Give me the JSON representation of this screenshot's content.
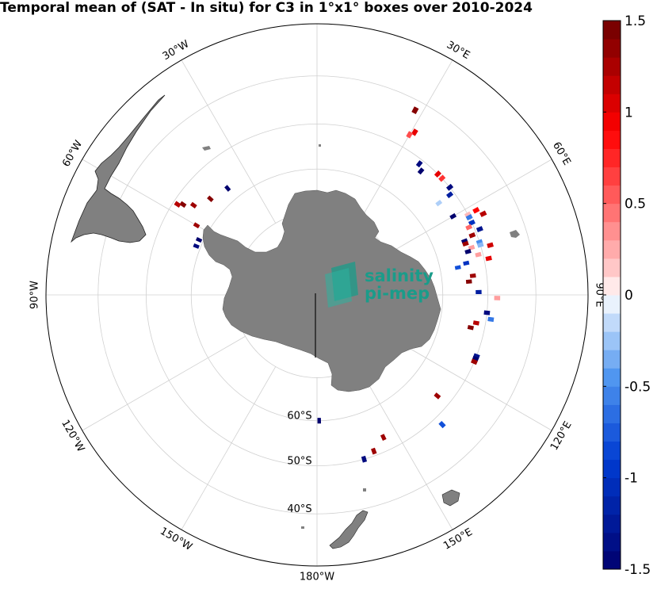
{
  "title": "Temporal mean of (SAT - In situ) for C3 in 1°x1° boxes over 2010-2024",
  "watermark": {
    "line1": "salinity",
    "line2": "pi-mep"
  },
  "longitude_labels": [
    {
      "text": "30°E",
      "lon": 30
    },
    {
      "text": "60°E",
      "lon": 60
    },
    {
      "text": "90°E",
      "lon": 90
    },
    {
      "text": "120°E",
      "lon": 120
    },
    {
      "text": "150°E",
      "lon": 150
    },
    {
      "text": "180°W",
      "lon": 180
    },
    {
      "text": "150°W",
      "lon": -150
    },
    {
      "text": "120°W",
      "lon": -120
    },
    {
      "text": "90°W",
      "lon": -90
    },
    {
      "text": "60°W",
      "lon": -60
    },
    {
      "text": "30°W",
      "lon": -30
    }
  ],
  "latitude_labels": [
    {
      "text": "60°S",
      "lat": -60
    },
    {
      "text": "50°S",
      "lat": -50
    },
    {
      "text": "40°S",
      "lat": -40
    }
  ],
  "map": {
    "projection": "south-polar-stereographic",
    "lat_circles": [
      -70,
      -60,
      -50,
      -40,
      -30
    ],
    "meridians": [
      0,
      30,
      60,
      90,
      120,
      150,
      180,
      -150,
      -120,
      -90,
      -60,
      -30
    ],
    "land_color": "#808080",
    "grid_color": "#d0d0d0"
  },
  "colorbar": {
    "min": -1.5,
    "max": 1.5,
    "levels": 30,
    "ticks": [
      {
        "value": 1.5,
        "text": "1.5"
      },
      {
        "value": 1,
        "text": "1"
      },
      {
        "value": 0.5,
        "text": "0.5"
      },
      {
        "value": 0,
        "text": "0"
      },
      {
        "value": -0.5,
        "text": "-0.5"
      },
      {
        "value": -1,
        "text": "-1"
      },
      {
        "value": -1.5,
        "text": "-1.5"
      }
    ]
  },
  "chart_data": {
    "type": "heatmap",
    "title": "Temporal mean of (SAT - In situ) for C3 in 1°x1° boxes over 2010-2024",
    "color_range": [
      -1.5,
      1.5
    ],
    "colormap": "blue-white-red",
    "cells": [
      {
        "lon": 28,
        "lat": -42,
        "value": 1.4
      },
      {
        "lon": 31,
        "lat": -46,
        "value": 1.0
      },
      {
        "lon": 30,
        "lat": -47,
        "value": 0.6
      },
      {
        "lon": 38,
        "lat": -51,
        "value": -1.4
      },
      {
        "lon": 40,
        "lat": -52,
        "value": -1.5
      },
      {
        "lon": 45,
        "lat": -50,
        "value": 1.0
      },
      {
        "lon": 47,
        "lat": -50,
        "value": 0.7
      },
      {
        "lon": 51,
        "lat": -50,
        "value": -1.4
      },
      {
        "lon": 53,
        "lat": -51,
        "value": -1.2
      },
      {
        "lon": 53,
        "lat": -54,
        "value": -0.2
      },
      {
        "lon": 60,
        "lat": -53,
        "value": -1.5
      },
      {
        "lon": 62,
        "lat": -50,
        "value": 0.2
      },
      {
        "lon": 62,
        "lat": -48,
        "value": 0.9
      },
      {
        "lon": 64,
        "lat": -47,
        "value": 1.2
      },
      {
        "lon": 63,
        "lat": -50,
        "value": -0.6
      },
      {
        "lon": 65,
        "lat": -50,
        "value": -1.0
      },
      {
        "lon": 66,
        "lat": -51,
        "value": 0.5
      },
      {
        "lon": 68,
        "lat": -49,
        "value": -1.3
      },
      {
        "lon": 69,
        "lat": -51,
        "value": 1.3
      },
      {
        "lon": 70,
        "lat": -53,
        "value": -1.5
      },
      {
        "lon": 71,
        "lat": -53,
        "value": 1.3
      },
      {
        "lon": 72,
        "lat": -50,
        "value": -0.5
      },
      {
        "lon": 73,
        "lat": -52,
        "value": 0.3
      },
      {
        "lon": 73,
        "lat": -50,
        "value": -0.3
      },
      {
        "lon": 74,
        "lat": -53,
        "value": -1.5
      },
      {
        "lon": 74,
        "lat": -48,
        "value": 1.1
      },
      {
        "lon": 76,
        "lat": -51,
        "value": 0.3
      },
      {
        "lon": 78,
        "lat": -54,
        "value": -1.0
      },
      {
        "lon": 78,
        "lat": -49,
        "value": 1.0
      },
      {
        "lon": 79,
        "lat": -56,
        "value": -0.8
      },
      {
        "lon": 83,
        "lat": -53,
        "value": 1.3
      },
      {
        "lon": 85,
        "lat": -54,
        "value": 1.4
      },
      {
        "lon": 89,
        "lat": -52,
        "value": -1.2
      },
      {
        "lon": 91,
        "lat": -48,
        "value": 0.3
      },
      {
        "lon": 96,
        "lat": -50,
        "value": -1.4
      },
      {
        "lon": 98,
        "lat": -49,
        "value": -0.6
      },
      {
        "lon": 100,
        "lat": -52,
        "value": 1.2
      },
      {
        "lon": 102,
        "lat": -53,
        "value": 1.4
      },
      {
        "lon": 111,
        "lat": -50,
        "value": -1.3
      },
      {
        "lon": 112,
        "lat": -50,
        "value": -1.5
      },
      {
        "lon": 113,
        "lat": -50,
        "value": 1.3
      },
      {
        "lon": 130,
        "lat": -53,
        "value": 1.3
      },
      {
        "lon": 136,
        "lat": -48,
        "value": -0.8
      },
      {
        "lon": 155,
        "lat": -53,
        "value": 1.3
      },
      {
        "lon": 160,
        "lat": -51,
        "value": 1.3
      },
      {
        "lon": 164,
        "lat": -50,
        "value": -1.4
      },
      {
        "lon": 179,
        "lat": -60,
        "value": -1.5
      },
      {
        "lon": -40,
        "lat": -57,
        "value": -1.5
      },
      {
        "lon": -48,
        "lat": -56,
        "value": 1.4
      },
      {
        "lon": -54,
        "lat": -54,
        "value": 1.3
      },
      {
        "lon": -56,
        "lat": -52,
        "value": 1.4
      },
      {
        "lon": -57,
        "lat": -51,
        "value": 1.2
      },
      {
        "lon": -60,
        "lat": -57,
        "value": 1.3
      },
      {
        "lon": -65,
        "lat": -59,
        "value": -1.5
      },
      {
        "lon": -68,
        "lat": -59,
        "value": -1.4
      }
    ]
  }
}
